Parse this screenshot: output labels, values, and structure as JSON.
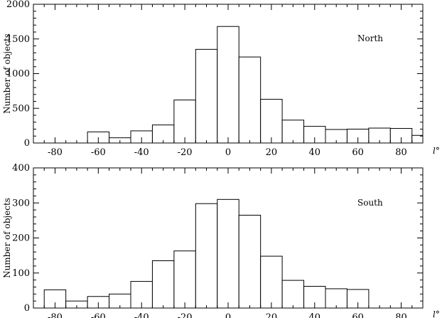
{
  "chart_data": [
    {
      "type": "bar",
      "panel_label": "North",
      "ylabel": "Number of objects",
      "xlabel": "l°",
      "xlim": [
        -90,
        90
      ],
      "ylim": [
        0,
        2000
      ],
      "xticks": [
        -80,
        -60,
        -40,
        -20,
        0,
        20,
        40,
        60,
        80
      ],
      "yticks": [
        0,
        500,
        1000,
        1500,
        2000
      ],
      "bin_width": 10,
      "bins": [
        {
          "x0": -65,
          "x1": -55,
          "value": 160
        },
        {
          "x0": -55,
          "x1": -45,
          "value": 75
        },
        {
          "x0": -45,
          "x1": -35,
          "value": 175
        },
        {
          "x0": -35,
          "x1": -25,
          "value": 260
        },
        {
          "x0": -25,
          "x1": -15,
          "value": 620
        },
        {
          "x0": -15,
          "x1": -5,
          "value": 1350
        },
        {
          "x0": -5,
          "x1": 5,
          "value": 1680
        },
        {
          "x0": 5,
          "x1": 15,
          "value": 1240
        },
        {
          "x0": 15,
          "x1": 25,
          "value": 630
        },
        {
          "x0": 25,
          "x1": 35,
          "value": 330
        },
        {
          "x0": 35,
          "x1": 45,
          "value": 240
        },
        {
          "x0": 45,
          "x1": 55,
          "value": 195
        },
        {
          "x0": 55,
          "x1": 65,
          "value": 200
        },
        {
          "x0": 65,
          "x1": 75,
          "value": 215
        },
        {
          "x0": 75,
          "x1": 85,
          "value": 210
        },
        {
          "x0": 85,
          "x1": 90,
          "value": 110
        }
      ],
      "grid": false,
      "legend": "none"
    },
    {
      "type": "bar",
      "panel_label": "South",
      "ylabel": "Number of objects",
      "xlabel": "l°",
      "xlim": [
        -90,
        90
      ],
      "ylim": [
        0,
        400
      ],
      "xticks": [
        -80,
        -60,
        -40,
        -20,
        0,
        20,
        40,
        60,
        80
      ],
      "yticks": [
        0,
        100,
        200,
        300,
        400
      ],
      "bin_width": 10,
      "bins": [
        {
          "x0": -85,
          "x1": -75,
          "value": 52
        },
        {
          "x0": -75,
          "x1": -65,
          "value": 20
        },
        {
          "x0": -65,
          "x1": -55,
          "value": 33
        },
        {
          "x0": -55,
          "x1": -45,
          "value": 40
        },
        {
          "x0": -45,
          "x1": -35,
          "value": 76
        },
        {
          "x0": -35,
          "x1": -25,
          "value": 135
        },
        {
          "x0": -25,
          "x1": -15,
          "value": 163
        },
        {
          "x0": -15,
          "x1": -5,
          "value": 298
        },
        {
          "x0": -5,
          "x1": 5,
          "value": 310
        },
        {
          "x0": 5,
          "x1": 15,
          "value": 265
        },
        {
          "x0": 15,
          "x1": 25,
          "value": 148
        },
        {
          "x0": 25,
          "x1": 35,
          "value": 79
        },
        {
          "x0": 35,
          "x1": 45,
          "value": 62
        },
        {
          "x0": 45,
          "x1": 55,
          "value": 55
        },
        {
          "x0": 55,
          "x1": 65,
          "value": 53
        }
      ],
      "grid": false,
      "legend": "none"
    }
  ]
}
